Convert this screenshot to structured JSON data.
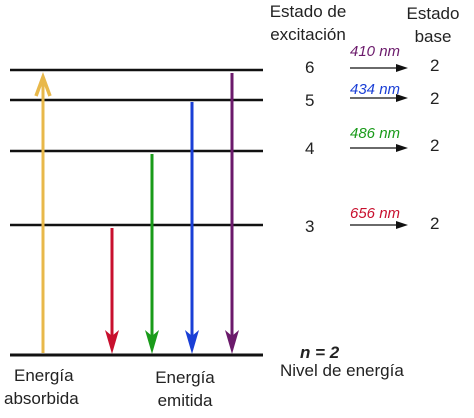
{
  "header": {
    "excited_line1": "Estado de",
    "excited_line2": "excitación",
    "base_line1": "Estado",
    "base_line2": "base"
  },
  "transitions": [
    {
      "from": "6",
      "to": "2",
      "wavelength": "410 nm",
      "color": "#6b1a6b"
    },
    {
      "from": "5",
      "to": "2",
      "wavelength": "434 nm",
      "color": "#1a3fd6"
    },
    {
      "from": "4",
      "to": "2",
      "wavelength": "486 nm",
      "color": "#1a9b1a"
    },
    {
      "from": "3",
      "to": "2",
      "wavelength": "656 nm",
      "color": "#c8102e"
    }
  ],
  "bottom": {
    "absorbed_line1": "Energía",
    "absorbed_line2": "absorbida",
    "emitted_line1": "Energía",
    "emitted_line2": "emitida",
    "n_label": "n = 2",
    "level_label": "Nivel de energía"
  },
  "colors": {
    "absorbed": "#e8b84a",
    "level_line": "#111111"
  }
}
